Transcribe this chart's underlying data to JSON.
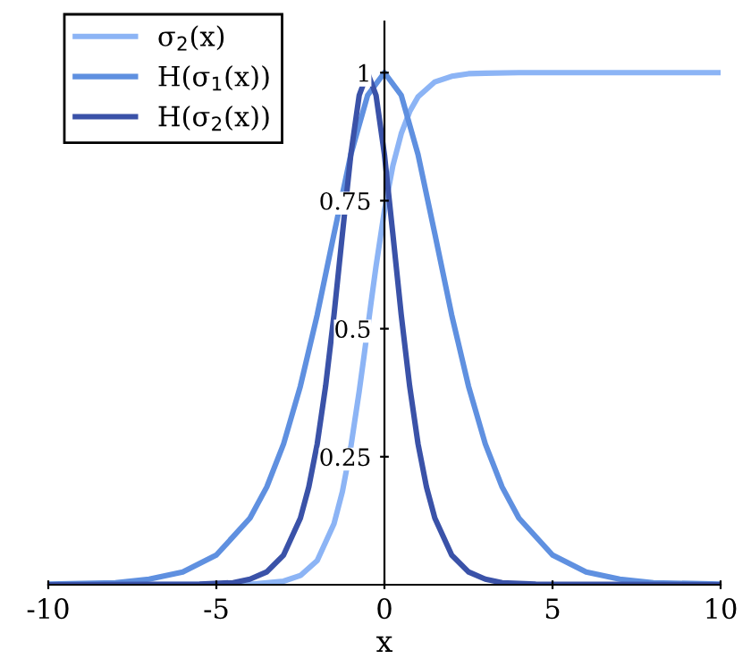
{
  "chart_data": {
    "type": "line",
    "xlabel": "x",
    "xlim": [
      -10,
      10
    ],
    "ylim": [
      0,
      1.1
    ],
    "xticks": [
      -10,
      -5,
      0,
      5,
      10
    ],
    "yticks": [
      0.25,
      0.5,
      0.75,
      1
    ],
    "grid": false,
    "legend": "top left",
    "marker": "none",
    "line_style": "solid",
    "series": [
      {
        "name": "σ$_{2}$(x)",
        "color": "#8cb4f5",
        "x": [
          -10,
          -4,
          -3,
          -2.5,
          -2,
          -1.5,
          -1.25,
          -1,
          -0.75,
          -0.6,
          -0.4,
          -0.25,
          0,
          0.25,
          0.5,
          0.75,
          1,
          1.5,
          2,
          2.5,
          3,
          4,
          10
        ],
        "values": [
          0,
          0.001,
          0.007,
          0.018,
          0.047,
          0.119,
          0.182,
          0.269,
          0.378,
          0.45,
          0.55,
          0.622,
          0.731,
          0.818,
          0.881,
          0.924,
          0.953,
          0.982,
          0.993,
          0.998,
          0.999,
          1,
          1
        ]
      },
      {
        "name": "H(σ$_{1}$(x))",
        "color": "#5f90e0",
        "x": [
          -10,
          -8,
          -7,
          -6,
          -5,
          -4,
          -3.5,
          -3,
          -2.5,
          -2,
          -1.5,
          -1,
          -0.5,
          0,
          0.5,
          1,
          1.5,
          2,
          2.5,
          3,
          3.5,
          4,
          5,
          6,
          7,
          8,
          10
        ],
        "values": [
          0.001,
          0.004,
          0.011,
          0.025,
          0.058,
          0.13,
          0.191,
          0.275,
          0.388,
          0.527,
          0.685,
          0.84,
          0.956,
          1,
          0.956,
          0.84,
          0.685,
          0.527,
          0.388,
          0.275,
          0.191,
          0.13,
          0.058,
          0.025,
          0.011,
          0.004,
          0.001
        ]
      },
      {
        "name": "H(σ$_{2}$(x))",
        "color": "#3a52a8",
        "x": [
          -10,
          -5.5,
          -4.5,
          -4,
          -3.5,
          -3,
          -2.5,
          -2.25,
          -2,
          -1.75,
          -1.5,
          -1.25,
          -1,
          -0.75,
          -0.5,
          -0.25,
          0,
          0.25,
          0.5,
          0.75,
          1,
          1.25,
          1.5,
          2,
          2.5,
          3,
          3.5,
          4.5,
          10
        ],
        "values": [
          0,
          0.001,
          0.004,
          0.011,
          0.025,
          0.058,
          0.13,
          0.191,
          0.275,
          0.388,
          0.527,
          0.685,
          0.84,
          0.956,
          1,
          0.956,
          0.84,
          0.685,
          0.527,
          0.388,
          0.275,
          0.191,
          0.13,
          0.058,
          0.025,
          0.011,
          0.004,
          0.001,
          0
        ]
      }
    ]
  }
}
